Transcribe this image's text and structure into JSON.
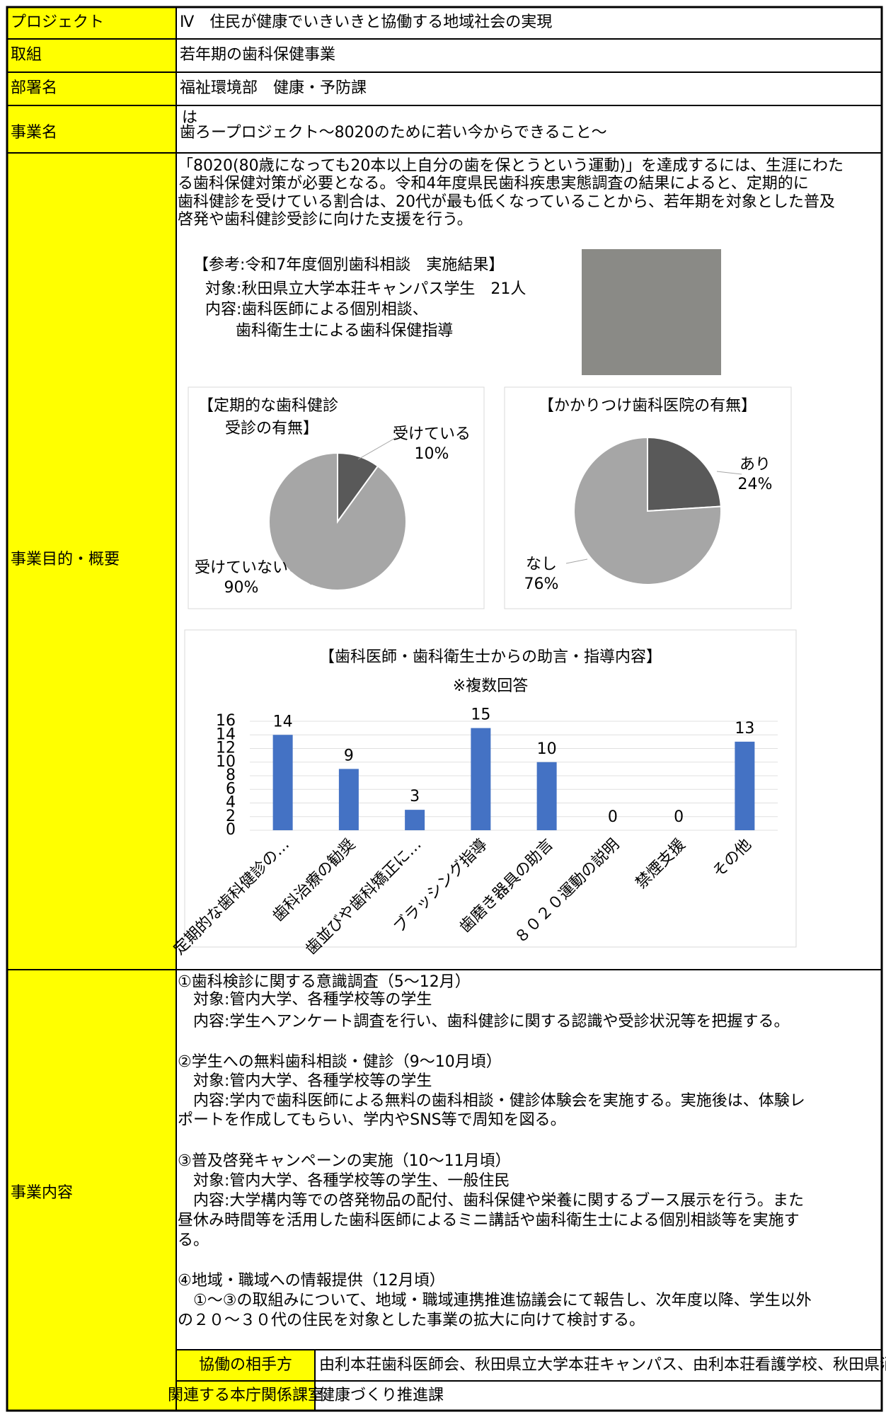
{
  "rows": [
    {
      "label": "プロジェクト",
      "text": "Ⅳ　住民が健康でいきいきと協働する地域社会の実現"
    },
    {
      "label": "取組",
      "text": "若年期の歯科保健事業"
    },
    {
      "label": "部署名",
      "text": "福祉環境部　健康・予防課"
    },
    {
      "label": "事業名",
      "ruby": "は",
      "text": "歯ろープロジェクト～8020のために若い今からできること～"
    }
  ],
  "purpose": {
    "label": "事業目的・概要",
    "paragraph": [
      "「8020(80歳になっても20本以上自分の歯を保とうという運動)」を達成するには、生涯にわた",
      "る歯科保健対策が必要となる。令和4年度県民歯科疾患実態調査の結果によると、定期的に",
      "歯科健診を受けている割合は、20代が最も低くなっていることから、若年期を対象とした普及",
      "啓発や歯科健診受診に向けた支援を行う。"
    ],
    "reference": {
      "title": "【参考:令和7年度個別歯科相談　実施結果】",
      "lines": [
        "対象:秋田県立大学本荘キャンパス学生　21人",
        "内容:歯科医師による個別相談、",
        "歯科衛生士による歯科保健指導"
      ]
    },
    "charts": [
      {
        "type": "pie",
        "title": [
          "【定期的な歯科健診",
          "受診の有無】"
        ],
        "categories": [
          "受けている",
          "受けていない"
        ],
        "values": [
          10,
          90
        ],
        "value_labels": [
          "10%",
          "90%"
        ],
        "colors": [
          "#595959",
          "#a6a6a6"
        ]
      },
      {
        "type": "pie",
        "title": [
          "【かかりつけ歯科医院の有無】"
        ],
        "categories": [
          "あり",
          "なし"
        ],
        "values": [
          24,
          76
        ],
        "value_labels": [
          "24%",
          "76%"
        ],
        "colors": [
          "#595959",
          "#a6a6a6"
        ]
      },
      {
        "type": "bar",
        "title": "【歯科医師・歯科衛生士からの助言・指導内容】",
        "subtitle": "※複数回答",
        "categories": [
          "定期的な歯科健診の…",
          "歯科治療の勧奨",
          "歯並びや歯科矯正に…",
          "ブラッシング指導",
          "歯磨き器具の助言",
          "８０２０運動の説明",
          "禁煙支援",
          "その他"
        ],
        "values": [
          14,
          9,
          3,
          15,
          10,
          0,
          0,
          13
        ],
        "color": "#4472c4",
        "ylim": [
          0,
          16
        ],
        "yticks": [
          0,
          2,
          4,
          6,
          8,
          10,
          12,
          14,
          16
        ],
        "grid": true
      }
    ]
  },
  "content": {
    "label": "事業内容",
    "lines": [
      "①歯科検診に関する意識調査（5～12月）",
      "対象:管内大学、各種学校等の学生",
      "内容:学生へアンケート調査を行い、歯科健診に関する認識や受診状況等を把握する。",
      "②学生への無料歯科相談・健診（9～10月頃）",
      "対象:管内大学、各種学校等の学生",
      "内容:学内で歯科医師による無料の歯科相談・健診体験会を実施する。実施後は、体験レ",
      "ポートを作成してもらい、学内やSNS等で周知を図る。",
      "③普及啓発キャンペーンの実施（10～11月頃）",
      "対象:管内大学、各種学校等の学生、一般住民",
      "内容:大学構内等での啓発物品の配付、歯科保健や栄養に関するブース展示を行う。また",
      "昼休み時間等を活用した歯科医師によるミニ講話や歯科衛生士による個別相談等を実施す",
      "る。",
      "④地域・職域への情報提供（12月頃）",
      "①～③の取組みについて、地域・職域連携推進協議会にて報告し、次年度以降、学生以外",
      "の２０～３０代の住民を対象とした事業の拡大に向けて検討する。"
    ],
    "partners": {
      "label": "協働の相手方",
      "text": "由利本荘歯科医師会、秋田県立大学本荘キャンパス、由利本荘看護学校、秋田県消防学校、市町村、職域"
    },
    "related": {
      "label": "関連する本庁関係課室",
      "text": "健康づくり推進課"
    }
  }
}
